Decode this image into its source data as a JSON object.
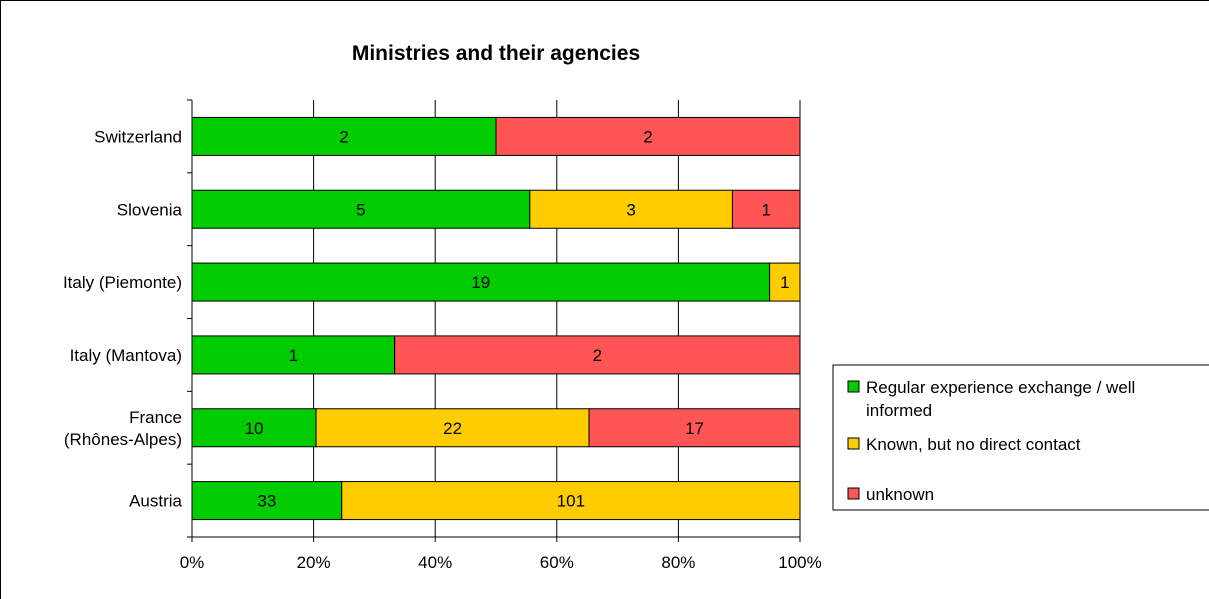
{
  "chart_data": {
    "type": "bar",
    "orientation": "horizontal",
    "stacked": "percent",
    "title": "Ministries and their agencies",
    "categories": [
      [
        "Switzerland"
      ],
      [
        "Slovenia"
      ],
      [
        "Italy (Piemonte)"
      ],
      [
        "Italy (Mantova)"
      ],
      [
        "France",
        "(Rhônes-Alpes)"
      ],
      [
        "Austria"
      ]
    ],
    "series": [
      {
        "name": "Regular experience exchange / well informed",
        "color": "#00cc00",
        "values": [
          2,
          5,
          19,
          1,
          10,
          33
        ]
      },
      {
        "name": "Known, but no direct contact",
        "color": "#ffcc00",
        "values": [
          0,
          3,
          1,
          0,
          22,
          101
        ]
      },
      {
        "name": "unknown",
        "color": "#ff5555",
        "values": [
          2,
          1,
          0,
          2,
          17,
          0
        ]
      }
    ],
    "xlim": [
      0,
      100
    ],
    "x_ticks": [
      "0%",
      "20%",
      "40%",
      "60%",
      "80%",
      "100%"
    ],
    "grid": true,
    "legend_position": "right",
    "legend_lines": [
      [
        "Regular experience exchange / well",
        "informed"
      ],
      [
        "Known, but no direct contact"
      ],
      [
        "unknown"
      ]
    ]
  }
}
